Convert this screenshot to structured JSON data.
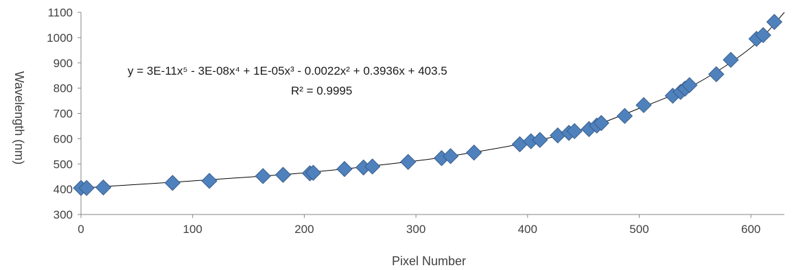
{
  "chart_data": {
    "type": "scatter",
    "title": "",
    "xlabel": "Pixel Number",
    "ylabel": "Wavelength (nm)",
    "xlim": [
      0,
      630
    ],
    "ylim": [
      300,
      1100
    ],
    "x_ticks": [
      0,
      100,
      200,
      300,
      400,
      500,
      600
    ],
    "y_ticks": [
      300,
      400,
      500,
      600,
      700,
      800,
      900,
      1000,
      1100
    ],
    "grid": false,
    "legend": "none",
    "marker": "diamond",
    "marker_color": "#4f81bd",
    "marker_edge_color": "#385d8a",
    "trendline_color": "#000000",
    "trendline": {
      "kind": "polynomial",
      "order": 5,
      "coefficients": [
        403.5,
        0.3936,
        -0.0022,
        1e-05,
        -3e-08,
        3e-11
      ],
      "equation": "y = 3E-11x⁵ - 3E-08x⁴ + 1E-05x³ - 0.0022x² + 0.3936x + 403.5",
      "r_squared": "R² = 0.9995"
    },
    "series": [
      {
        "points": [
          [
            0,
            405
          ],
          [
            5,
            405
          ],
          [
            20,
            407
          ],
          [
            82,
            425
          ],
          [
            115,
            433
          ],
          [
            163,
            452
          ],
          [
            181,
            457
          ],
          [
            205,
            463
          ],
          [
            208,
            465
          ],
          [
            236,
            480
          ],
          [
            253,
            486
          ],
          [
            261,
            490
          ],
          [
            293,
            508
          ],
          [
            323,
            523
          ],
          [
            331,
            531
          ],
          [
            352,
            545
          ],
          [
            393,
            578
          ],
          [
            403,
            590
          ],
          [
            411,
            595
          ],
          [
            427,
            613
          ],
          [
            437,
            623
          ],
          [
            442,
            630
          ],
          [
            455,
            638
          ],
          [
            462,
            652
          ],
          [
            466,
            662
          ],
          [
            487,
            690
          ],
          [
            504,
            733
          ],
          [
            530,
            770
          ],
          [
            537,
            785
          ],
          [
            541,
            798
          ],
          [
            545,
            812
          ],
          [
            569,
            855
          ],
          [
            582,
            912
          ],
          [
            605,
            995
          ],
          [
            611,
            1010
          ],
          [
            621,
            1062
          ]
        ]
      }
    ]
  }
}
